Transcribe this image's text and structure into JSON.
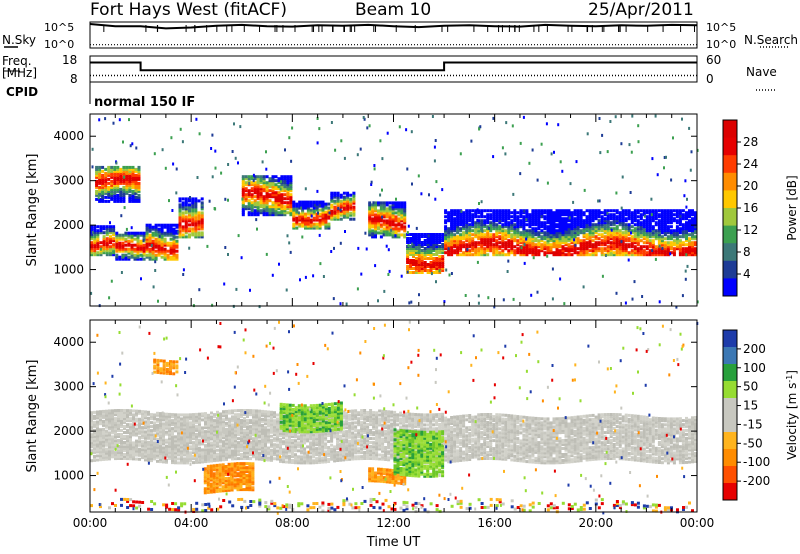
{
  "header": {
    "station": "Fort Hays West (fitACF)",
    "beam": "Beam 10",
    "date": "25/Apr/2011"
  },
  "colors": {
    "power_scale": [
      "#0000ff",
      "#1e3c96",
      "#3c7878",
      "#3ca050",
      "#a0c83c",
      "#ffc800",
      "#ff8c00",
      "#ff3c00",
      "#e60000",
      "#dc0000"
    ],
    "velocity_scale": [
      "#1e3caa",
      "#3c78b4",
      "#28a03c",
      "#96dc32",
      "#c8c8c0",
      "#c8c8c0",
      "#ffb41e",
      "#ff8c00",
      "#ff5000",
      "#e60000"
    ]
  },
  "chart_data": [
    {
      "type": "line",
      "name": "noise",
      "left_label_1": "N.Sky",
      "right_label_1": "N.Search",
      "left_ticks": [
        "10^5",
        "10^0"
      ],
      "right_ticks": [
        "10^5",
        "10^0"
      ],
      "series": [
        {
          "style": "solid",
          "values": [
            5,
            4.5,
            4.5,
            4.0,
            4.2,
            4.6,
            4.8,
            4.5,
            4.4,
            4.7,
            4.6,
            4.8,
            4.5,
            4.3,
            4.6,
            4.7,
            4.5,
            4.4,
            4.8,
            4.6,
            4.5,
            4.7,
            4.6,
            4.8,
            4.7
          ]
        },
        {
          "style": "dotted",
          "values": [
            0.3,
            0.3,
            0.3,
            0.3,
            0.3,
            0.3,
            0.3,
            0.3,
            0.3,
            0.3,
            0.3,
            0.3,
            0.3,
            0.3,
            0.3,
            0.3,
            0.3,
            0.3,
            0.3,
            0.3,
            0.3,
            0.3,
            0.3,
            0.3,
            0.3
          ]
        }
      ]
    },
    {
      "type": "line",
      "name": "frequency",
      "left_label_1": "Freq.",
      "left_label_2": "[MHz]",
      "left_label_3": "CPID",
      "right_label_1": "Nave",
      "left_ticks": [
        "18",
        "8"
      ],
      "right_ticks": [
        "60",
        "0"
      ],
      "cpid_text": "normal 150 IF",
      "freq_steps": [
        {
          "start": 0,
          "end": 2,
          "value": 15.5
        },
        {
          "start": 2,
          "end": 14,
          "value": 12.5
        },
        {
          "start": 14,
          "end": 24,
          "value": 15.5
        }
      ],
      "nave": 15
    },
    {
      "type": "heatmap",
      "name": "power",
      "ylabel": "Slant Range [km]",
      "ylim": [
        180,
        4500
      ],
      "xlim": [
        0,
        24
      ],
      "yticks": [
        1000,
        2000,
        3000,
        4000
      ],
      "colorbar_label": "Power [dB]",
      "colorbar_ticks": [
        "28",
        "24",
        "20",
        "16",
        "12",
        "8",
        "4"
      ],
      "bands": [
        {
          "t0": 0.0,
          "t1": 1.0,
          "r0": 1300,
          "r1": 1950,
          "peak": 1480
        },
        {
          "t0": 1.0,
          "t1": 2.2,
          "r0": 1200,
          "r1": 1800,
          "peak": 1400
        },
        {
          "t0": 2.2,
          "t1": 3.5,
          "r0": 1200,
          "r1": 2000,
          "peak": 1500
        },
        {
          "t0": 3.5,
          "t1": 4.5,
          "r0": 1700,
          "r1": 2600,
          "peak": 2100
        },
        {
          "t0": 6.0,
          "t1": 8.0,
          "r0": 2200,
          "r1": 3100,
          "peak": 2600
        },
        {
          "t0": 8.0,
          "t1": 9.5,
          "r0": 1900,
          "r1": 2500,
          "peak": 2200
        },
        {
          "t0": 9.5,
          "t1": 10.5,
          "r0": 2100,
          "r1": 2700,
          "peak": 2300
        },
        {
          "t0": 11.0,
          "t1": 12.5,
          "r0": 1700,
          "r1": 2500,
          "peak": 2000
        },
        {
          "t0": 12.5,
          "t1": 14.0,
          "r0": 900,
          "r1": 1800,
          "peak": 1200
        },
        {
          "t0": 14.0,
          "t1": 24.0,
          "r0": 1300,
          "r1": 2300,
          "peak": 1450
        },
        {
          "t0": 0.2,
          "t1": 2.0,
          "r0": 2500,
          "r1": 3300,
          "peak": 2900
        }
      ]
    },
    {
      "type": "heatmap",
      "name": "velocity",
      "ylabel": "Slant Range [km]",
      "xlabel": "Time UT",
      "ylim": [
        180,
        4500
      ],
      "xlim": [
        0,
        24
      ],
      "yticks": [
        1000,
        2000,
        3000,
        4000
      ],
      "xticks": [
        "00:00",
        "04:00",
        "08:00",
        "12:00",
        "16:00",
        "20:00",
        "00:00"
      ],
      "colorbar_label": "Velocity [m s",
      "colorbar_label_sup": "-1",
      "colorbar_label_end": "]",
      "colorbar_ticks": [
        "200",
        "100",
        "50",
        "15",
        "-15",
        "-50",
        "-100",
        "-200"
      ],
      "blobs": [
        {
          "t0": 0.0,
          "t1": 14.0,
          "r0": 1300,
          "r1": 2400,
          "class": "grey"
        },
        {
          "t0": 14.0,
          "t1": 24.0,
          "r0": 1300,
          "r1": 2300,
          "class": "grey"
        },
        {
          "t0": 4.5,
          "t1": 6.5,
          "r0": 600,
          "r1": 1200,
          "class": "orange"
        },
        {
          "t0": 11.0,
          "t1": 12.5,
          "r0": 800,
          "r1": 1100,
          "class": "orange"
        },
        {
          "t0": 12.0,
          "t1": 14.0,
          "r0": 1000,
          "r1": 2000,
          "class": "green"
        },
        {
          "t0": 7.5,
          "t1": 10.0,
          "r0": 2000,
          "r1": 2600,
          "class": "green"
        },
        {
          "t0": 2.5,
          "t1": 3.5,
          "r0": 3300,
          "r1": 3600,
          "class": "orange"
        },
        {
          "t0": 0.0,
          "t1": 24.0,
          "r0": 200,
          "r1": 400,
          "class": "mixed"
        }
      ]
    }
  ]
}
